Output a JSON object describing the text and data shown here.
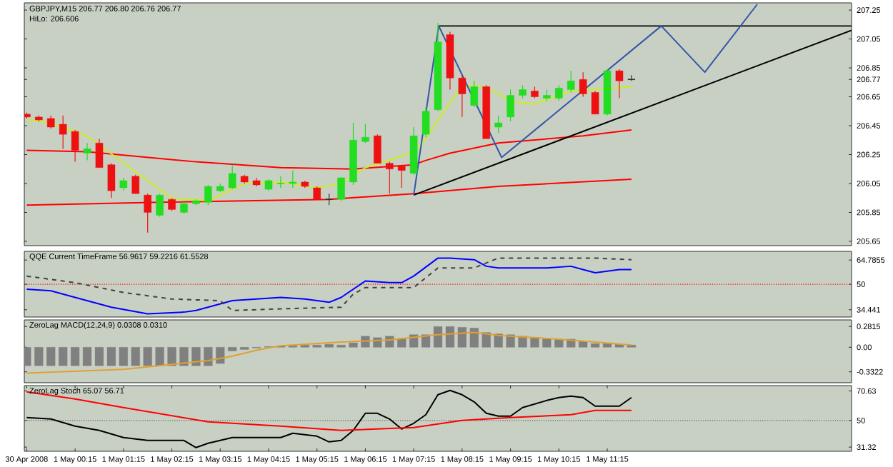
{
  "chart_data": [
    {
      "type": "candlestick",
      "title": "GBPJPY,M15 206.77 206.80 206.76 206.77",
      "subtitle": "HiLo: 206.606",
      "tick_labels": "y",
      "xlim": [
        "2008-04-30T23:12",
        "2008-05-01T16:18"
      ],
      "ylim": [
        205.62,
        207.3
      ],
      "yticks": [
        205.65,
        205.85,
        206.05,
        206.25,
        206.45,
        206.65,
        206.85,
        207.05,
        207.25,
        206.77
      ],
      "x": [
        "2008-04-30T23:15",
        "2008-04-30T23:30",
        "2008-04-30T23:45",
        "2008-05-01T00:00",
        "2008-05-01T00:15",
        "2008-05-01T00:30",
        "2008-05-01T00:45",
        "2008-05-01T01:00",
        "2008-05-01T01:15",
        "2008-05-01T01:30",
        "2008-05-01T01:45",
        "2008-05-01T02:00",
        "2008-05-01T02:15",
        "2008-05-01T02:30",
        "2008-05-01T02:45",
        "2008-05-01T03:00",
        "2008-05-01T03:15",
        "2008-05-01T03:30",
        "2008-05-01T03:45",
        "2008-05-01T04:00",
        "2008-05-01T04:15",
        "2008-05-01T04:30",
        "2008-05-01T04:45",
        "2008-05-01T05:00",
        "2008-05-01T05:15",
        "2008-05-01T05:30",
        "2008-05-01T05:45",
        "2008-05-01T06:00",
        "2008-05-01T06:15",
        "2008-05-01T06:30",
        "2008-05-01T06:45",
        "2008-05-01T07:00",
        "2008-05-01T07:15",
        "2008-05-01T07:30",
        "2008-05-01T07:45",
        "2008-05-01T08:00",
        "2008-05-01T08:15",
        "2008-05-01T08:30",
        "2008-05-01T08:45",
        "2008-05-01T09:00",
        "2008-05-01T09:15",
        "2008-05-01T09:30",
        "2008-05-01T09:45",
        "2008-05-01T10:00",
        "2008-05-01T10:15",
        "2008-05-01T10:30",
        "2008-05-01T10:45",
        "2008-05-01T11:00",
        "2008-05-01T11:15",
        "2008-05-01T11:30",
        "2008-05-01T11:45"
      ],
      "ohlc": [
        [
          206.53,
          206.54,
          206.5,
          206.51
        ],
        [
          206.51,
          206.52,
          206.48,
          206.49
        ],
        [
          206.5,
          206.52,
          206.43,
          206.44
        ],
        [
          206.46,
          206.52,
          206.29,
          206.39
        ],
        [
          206.41,
          206.42,
          206.2,
          206.28
        ],
        [
          206.26,
          206.33,
          206.21,
          206.29
        ],
        [
          206.33,
          206.36,
          206.16,
          206.16
        ],
        [
          206.18,
          206.19,
          205.95,
          206.0
        ],
        [
          206.02,
          206.09,
          206.0,
          206.07
        ],
        [
          206.1,
          206.11,
          205.98,
          205.98
        ],
        [
          205.97,
          205.98,
          205.71,
          205.85
        ],
        [
          205.83,
          205.98,
          205.82,
          205.97
        ],
        [
          205.94,
          205.95,
          205.86,
          205.87
        ],
        [
          205.85,
          205.93,
          205.84,
          205.91
        ],
        [
          205.91,
          205.94,
          205.9,
          205.93
        ],
        [
          205.92,
          206.04,
          205.9,
          206.03
        ],
        [
          206.0,
          206.05,
          205.99,
          206.03
        ],
        [
          206.02,
          206.18,
          206.01,
          206.12
        ],
        [
          206.1,
          206.11,
          206.05,
          206.06
        ],
        [
          206.07,
          206.09,
          206.03,
          206.04
        ],
        [
          206.01,
          206.08,
          206.0,
          206.07
        ],
        [
          206.05,
          206.1,
          206.02,
          206.05
        ],
        [
          206.05,
          206.14,
          206.02,
          206.06
        ],
        [
          206.06,
          206.07,
          206.02,
          206.03
        ],
        [
          206.02,
          206.03,
          205.94,
          205.94
        ],
        [
          205.94,
          205.98,
          205.9,
          205.94
        ],
        [
          205.94,
          206.09,
          205.93,
          206.09
        ],
        [
          206.06,
          206.47,
          206.04,
          206.35
        ],
        [
          206.34,
          206.46,
          206.33,
          206.37
        ],
        [
          206.38,
          206.39,
          206.19,
          206.19
        ],
        [
          206.19,
          206.2,
          205.98,
          206.15
        ],
        [
          206.17,
          206.18,
          206.02,
          206.14
        ],
        [
          206.12,
          206.44,
          206.11,
          206.38
        ],
        [
          206.39,
          206.58,
          206.37,
          206.55
        ],
        [
          206.56,
          207.16,
          206.55,
          207.03
        ],
        [
          207.08,
          207.1,
          206.7,
          206.78
        ],
        [
          206.78,
          206.8,
          206.51,
          206.67
        ],
        [
          206.59,
          206.76,
          206.58,
          206.72
        ],
        [
          206.72,
          206.73,
          206.36,
          206.36
        ],
        [
          206.44,
          206.52,
          206.4,
          206.47
        ],
        [
          206.51,
          206.7,
          206.48,
          206.66
        ],
        [
          206.66,
          206.73,
          206.64,
          206.7
        ],
        [
          206.69,
          206.72,
          206.64,
          206.65
        ],
        [
          206.64,
          206.7,
          206.62,
          206.66
        ],
        [
          206.64,
          206.73,
          206.62,
          206.71
        ],
        [
          206.7,
          206.83,
          206.68,
          206.76
        ],
        [
          206.77,
          206.82,
          206.65,
          206.67
        ],
        [
          206.68,
          206.69,
          206.53,
          206.53
        ],
        [
          206.53,
          206.84,
          206.52,
          206.83
        ],
        [
          206.83,
          206.84,
          206.64,
          206.76
        ],
        [
          206.77,
          206.8,
          206.76,
          206.77
        ]
      ],
      "colors": [
        "#ee1111",
        "#ee1111",
        "#ee1111",
        "#ee1111",
        "#ee1111",
        "#22dd22",
        "#ee1111",
        "#ee1111",
        "#22dd22",
        "#ee1111",
        "#ee1111",
        "#22dd22",
        "#ee1111",
        "#22dd22",
        "#22dd22",
        "#22dd22",
        "#22dd22",
        "#22dd22",
        "#ee1111",
        "#ee1111",
        "#22dd22",
        "#22dd22",
        "#22dd22",
        "#ee1111",
        "#ee1111",
        "#303030",
        "#22dd22",
        "#22dd22",
        "#22dd22",
        "#ee1111",
        "#ee1111",
        "#ee1111",
        "#22dd22",
        "#22dd22",
        "#22dd22",
        "#ee1111",
        "#ee1111",
        "#22dd22",
        "#ee1111",
        "#22dd22",
        "#22dd22",
        "#22dd22",
        "#ee1111",
        "#22dd22",
        "#22dd22",
        "#22dd22",
        "#ee1111",
        "#ee1111",
        "#22dd22",
        "#ee1111",
        "#303030"
      ],
      "series": [
        {
          "type": "line",
          "color": "#ff0000",
          "x": [
            "2008-04-30T23:15",
            "2008-05-01T00:30",
            "2008-05-01T02:45",
            "2008-05-01T04:30",
            "2008-05-01T06:00",
            "2008-05-01T07:15",
            "2008-05-01T07:30",
            "2008-05-01T08:00",
            "2008-05-01T09:00",
            "2008-05-01T10:45",
            "2008-05-01T11:45"
          ],
          "values": [
            206.28,
            206.27,
            206.2,
            206.16,
            206.15,
            206.18,
            206.21,
            206.26,
            206.33,
            206.38,
            206.42
          ]
        },
        {
          "type": "line",
          "color": "#ff0000",
          "x": [
            "2008-04-30T23:15",
            "2008-05-01T02:00",
            "2008-05-01T05:30",
            "2008-05-01T07:15",
            "2008-05-01T09:00",
            "2008-05-01T11:45"
          ],
          "values": [
            205.9,
            205.92,
            205.94,
            205.98,
            206.03,
            206.08
          ]
        },
        {
          "type": "line",
          "color": "#ccee22",
          "x": [
            "2008-04-30T23:15",
            "2008-04-30T23:45",
            "2008-05-01T00:30",
            "2008-05-01T01:30",
            "2008-05-01T02:15",
            "2008-05-01T03:00",
            "2008-05-01T03:45",
            "2008-05-01T04:30",
            "2008-05-01T05:15",
            "2008-05-01T05:45",
            "2008-05-01T06:15",
            "2008-05-01T07:00",
            "2008-05-01T07:15",
            "2008-05-01T07:30",
            "2008-05-01T07:45",
            "2008-05-01T08:15",
            "2008-05-01T08:45",
            "2008-05-01T09:15",
            "2008-05-01T09:45",
            "2008-05-01T10:30",
            "2008-05-01T11:00",
            "2008-05-01T11:45"
          ],
          "values": [
            206.49,
            206.47,
            206.38,
            206.13,
            205.95,
            205.93,
            206.05,
            206.06,
            206.02,
            206.05,
            206.16,
            206.24,
            206.27,
            206.36,
            206.49,
            206.73,
            206.72,
            206.62,
            206.6,
            206.69,
            206.7,
            206.72
          ]
        },
        {
          "type": "line",
          "color": "#000000",
          "x": [
            "2008-05-01T07:46",
            "2008-05-01T16:18"
          ],
          "values": [
            207.14,
            207.14
          ]
        },
        {
          "type": "line",
          "color": "#000000",
          "x": [
            "2008-05-01T07:15",
            "2008-05-01T16:18"
          ],
          "values": [
            205.97,
            207.11
          ]
        },
        {
          "type": "line",
          "color": "#3355aa",
          "x": [
            "2008-05-01T07:15",
            "2008-05-01T07:46",
            "2008-05-01T09:04",
            "2008-05-01T12:22",
            "2008-05-01T13:16",
            "2008-05-01T14:21"
          ],
          "values": [
            205.97,
            207.14,
            206.23,
            207.14,
            206.82,
            207.29
          ]
        }
      ]
    },
    {
      "type": "line",
      "title": "QQE Current TimeFrame 56.9617 59.2216 61.5528",
      "tick_labels": "y",
      "xlim": [
        "2008-04-30T23:12",
        "2008-05-01T16:18"
      ],
      "ylim": [
        30,
        70.1
      ],
      "yticks": [
        34.441,
        50,
        64.7855
      ],
      "ref_lines": [
        {
          "axis": "y",
          "value": 50,
          "color": "#ff0000",
          "line_style": "dotted"
        }
      ],
      "series": [
        {
          "color": "#0000ff",
          "x": [
            "2008-04-30T23:15",
            "2008-04-30T23:45",
            "2008-05-01T00:15",
            "2008-05-01T01:00",
            "2008-05-01T01:45",
            "2008-05-01T02:30",
            "2008-05-01T02:45",
            "2008-05-01T03:30",
            "2008-05-01T04:30",
            "2008-05-01T05:00",
            "2008-05-01T05:30",
            "2008-05-01T05:45",
            "2008-05-01T06:15",
            "2008-05-01T06:45",
            "2008-05-01T07:00",
            "2008-05-01T07:15",
            "2008-05-01T07:45",
            "2008-05-01T08:00",
            "2008-05-01T08:30",
            "2008-05-01T08:45",
            "2008-05-01T09:00",
            "2008-05-01T09:30",
            "2008-05-01T10:00",
            "2008-05-01T10:30",
            "2008-05-01T10:45",
            "2008-05-01T11:00",
            "2008-05-01T11:30",
            "2008-05-01T11:45"
          ],
          "values": [
            47,
            46,
            42,
            36,
            32,
            33,
            34,
            40,
            42,
            41,
            39,
            42,
            52,
            51,
            51,
            55,
            66,
            66,
            65,
            61,
            60,
            60,
            60,
            61,
            59,
            57,
            59,
            59
          ]
        },
        {
          "color": "#404040",
          "line_style": "dashed",
          "x": [
            "2008-04-30T23:15",
            "2008-05-01T00:15",
            "2008-05-01T01:15",
            "2008-05-01T02:15",
            "2008-05-01T03:15",
            "2008-05-01T03:30",
            "2008-05-01T04:30",
            "2008-05-01T05:45",
            "2008-05-01T06:00",
            "2008-05-01T06:15",
            "2008-05-01T07:15",
            "2008-05-01T07:45",
            "2008-05-01T08:30",
            "2008-05-01T09:00",
            "2008-05-01T10:00",
            "2008-05-01T11:00",
            "2008-05-01T11:45"
          ],
          "values": [
            55,
            51,
            45,
            41,
            40,
            34,
            35,
            36,
            44,
            48,
            48,
            60,
            60,
            66,
            66,
            66,
            65
          ]
        }
      ]
    },
    {
      "type": "bar",
      "title": "ZeroLag MACD(12,24,9) 0.0308 0.0310",
      "tick_labels": "y",
      "xlim": [
        "2008-04-30T23:12",
        "2008-05-01T16:18"
      ],
      "ylim": [
        -0.48,
        0.37
      ],
      "yticks": [
        -0.3322,
        {
          "value": 0,
          "label": "0.00"
        },
        0.2815
      ],
      "x": [
        "2008-04-30T23:15",
        "2008-04-30T23:30",
        "2008-04-30T23:45",
        "2008-05-01T00:00",
        "2008-05-01T00:15",
        "2008-05-01T00:30",
        "2008-05-01T00:45",
        "2008-05-01T01:00",
        "2008-05-01T01:15",
        "2008-05-01T01:30",
        "2008-05-01T01:45",
        "2008-05-01T02:00",
        "2008-05-01T02:15",
        "2008-05-01T02:30",
        "2008-05-01T02:45",
        "2008-05-01T03:00",
        "2008-05-01T03:15",
        "2008-05-01T03:30",
        "2008-05-01T03:45",
        "2008-05-01T04:00",
        "2008-05-01T04:15",
        "2008-05-01T04:30",
        "2008-05-01T04:45",
        "2008-05-01T05:00",
        "2008-05-01T05:15",
        "2008-05-01T05:30",
        "2008-05-01T05:45",
        "2008-05-01T06:00",
        "2008-05-01T06:15",
        "2008-05-01T06:30",
        "2008-05-01T06:45",
        "2008-05-01T07:00",
        "2008-05-01T07:15",
        "2008-05-01T07:30",
        "2008-05-01T07:45",
        "2008-05-01T08:00",
        "2008-05-01T08:15",
        "2008-05-01T08:30",
        "2008-05-01T08:45",
        "2008-05-01T09:00",
        "2008-05-01T09:15",
        "2008-05-01T09:30",
        "2008-05-01T09:45",
        "2008-05-01T10:00",
        "2008-05-01T10:15",
        "2008-05-01T10:30",
        "2008-05-01T10:45",
        "2008-05-01T11:00",
        "2008-05-01T11:15",
        "2008-05-01T11:30",
        "2008-05-01T11:45"
      ],
      "series": [
        {
          "color": "#808080",
          "values": [
            -0.25,
            -0.25,
            -0.25,
            -0.25,
            -0.25,
            -0.25,
            -0.25,
            -0.25,
            -0.25,
            -0.25,
            -0.25,
            -0.25,
            -0.25,
            -0.25,
            -0.25,
            -0.25,
            -0.22,
            -0.05,
            -0.03,
            -0.01,
            0.01,
            0.02,
            0.02,
            0.03,
            0.03,
            0.04,
            0.03,
            0.06,
            0.15,
            0.13,
            0.15,
            0.11,
            0.17,
            0.17,
            0.28,
            0.28,
            0.27,
            0.26,
            0.2,
            0.18,
            0.17,
            0.15,
            0.13,
            0.11,
            0.11,
            0.11,
            0.08,
            0.05,
            0.05,
            0.04,
            0.03
          ]
        },
        {
          "type": "line",
          "color": "#e0a030",
          "x": [
            "2008-04-30T23:15",
            "2008-05-01T01:15",
            "2008-05-01T03:00",
            "2008-05-01T03:30",
            "2008-05-01T04:00",
            "2008-05-01T04:30",
            "2008-05-01T05:45",
            "2008-05-01T06:45",
            "2008-05-01T07:45",
            "2008-05-01T08:30",
            "2008-05-01T09:00",
            "2008-05-01T10:00",
            "2008-05-01T11:00",
            "2008-05-01T11:45"
          ],
          "values": [
            -0.35,
            -0.3,
            -0.18,
            -0.12,
            -0.04,
            0.02,
            0.07,
            0.1,
            0.17,
            0.2,
            0.16,
            0.12,
            0.07,
            0.03
          ]
        }
      ]
    },
    {
      "type": "line",
      "title": "ZeroLag Stoch 65.07 56.71",
      "xlim": [
        "2008-04-30T23:12",
        "2008-05-01T16:18"
      ],
      "ylim": [
        28.4,
        74.4
      ],
      "yticks": [
        31.32,
        50,
        70.63
      ],
      "xticks": [
        {
          "value": "2008-04-30T23:15",
          "label": "30 Apr 2008"
        },
        {
          "value": "2008-05-01T00:15",
          "label": "1 May 00:15"
        },
        {
          "value": "2008-05-01T01:15",
          "label": "1 May 01:15"
        },
        {
          "value": "2008-05-01T02:15",
          "label": "1 May 02:15"
        },
        {
          "value": "2008-05-01T03:15",
          "label": "1 May 03:15"
        },
        {
          "value": "2008-05-01T04:15",
          "label": "1 May 04:15"
        },
        {
          "value": "2008-05-01T05:15",
          "label": "1 May 05:15"
        },
        {
          "value": "2008-05-01T06:15",
          "label": "1 May 06:15"
        },
        {
          "value": "2008-05-01T07:15",
          "label": "1 May 07:15"
        },
        {
          "value": "2008-05-01T08:15",
          "label": "1 May 08:15"
        },
        {
          "value": "2008-05-01T09:15",
          "label": "1 May 09:15"
        },
        {
          "value": "2008-05-01T10:15",
          "label": "1 May 10:15"
        },
        {
          "value": "2008-05-01T11:15",
          "label": "1 May 11:15"
        }
      ],
      "ref_lines": [
        {
          "axis": "y",
          "value": 50,
          "color": "#606060",
          "line_style": "dotted"
        }
      ],
      "series": [
        {
          "color": "#000000",
          "x": [
            "2008-04-30T23:15",
            "2008-04-30T23:45",
            "2008-05-01T00:15",
            "2008-05-01T00:45",
            "2008-05-01T01:15",
            "2008-05-01T01:45",
            "2008-05-01T02:30",
            "2008-05-01T02:45",
            "2008-05-01T03:00",
            "2008-05-01T03:30",
            "2008-05-01T04:00",
            "2008-05-01T04:30",
            "2008-05-01T04:45",
            "2008-05-01T05:15",
            "2008-05-01T05:30",
            "2008-05-01T05:45",
            "2008-05-01T06:00",
            "2008-05-01T06:15",
            "2008-05-01T06:30",
            "2008-05-01T06:45",
            "2008-05-01T07:00",
            "2008-05-01T07:15",
            "2008-05-01T07:30",
            "2008-05-01T07:45",
            "2008-05-01T08:00",
            "2008-05-01T08:15",
            "2008-05-01T08:30",
            "2008-05-01T08:45",
            "2008-05-01T09:00",
            "2008-05-01T09:15",
            "2008-05-01T09:30",
            "2008-05-01T10:00",
            "2008-05-01T10:15",
            "2008-05-01T10:30",
            "2008-05-01T10:45",
            "2008-05-01T11:00",
            "2008-05-01T11:30",
            "2008-05-01T11:45"
          ],
          "values": [
            52,
            51,
            46,
            43,
            38,
            36,
            36,
            31,
            34,
            38,
            38,
            38,
            41,
            39,
            35,
            36,
            43,
            55,
            55,
            51,
            44,
            48,
            54,
            68,
            71,
            68,
            63,
            55,
            53,
            53,
            59,
            64,
            66,
            67,
            66,
            60,
            60,
            66
          ]
        },
        {
          "color": "#ff0000",
          "x": [
            "2008-04-30T23:15",
            "2008-05-01T00:15",
            "2008-05-01T01:15",
            "2008-05-01T03:00",
            "2008-05-01T04:30",
            "2008-05-01T05:45",
            "2008-05-01T07:15",
            "2008-05-01T08:15",
            "2008-05-01T09:15",
            "2008-05-01T10:30",
            "2008-05-01T11:00",
            "2008-05-01T11:45"
          ],
          "values": [
            70,
            65,
            59,
            49,
            46,
            43,
            45,
            50,
            52,
            54,
            57,
            57
          ]
        }
      ]
    }
  ]
}
